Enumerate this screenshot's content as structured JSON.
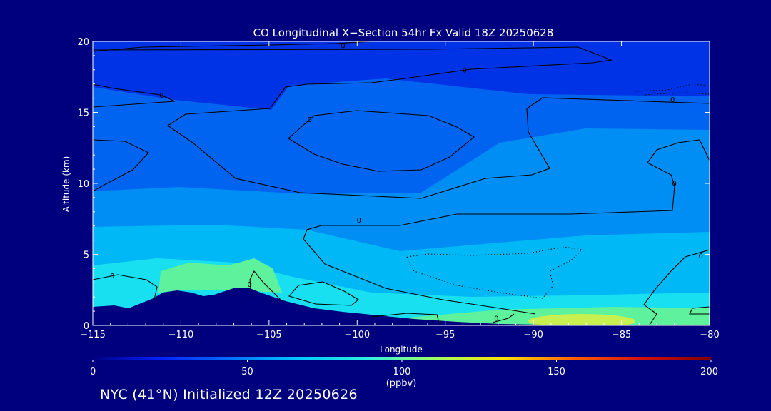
{
  "chart_data": {
    "type": "heatmap",
    "title": "CO Longitudinal X−Section 54hr  Fx Valid 18Z 20250628",
    "xlabel": "Longitude",
    "ylabel": "Altitude (km)",
    "xlim": [
      -115,
      -80
    ],
    "ylim": [
      0,
      20
    ],
    "x_ticks": [
      -115,
      -110,
      -105,
      -100,
      -95,
      -90,
      -85,
      -80
    ],
    "x_tick_labels": [
      "−115",
      "−110",
      "−105",
      "−100",
      "−95",
      "−90",
      "−85",
      "−80"
    ],
    "y_ticks": [
      0,
      5,
      10,
      15,
      20
    ],
    "y_tick_labels": [
      "0",
      "5",
      "10",
      "15",
      "20"
    ],
    "contour_labels": [
      {
        "text": "0",
        "x": -100.8,
        "y": 19.7
      },
      {
        "text": "0",
        "x": -93.9,
        "y": 18.0
      },
      {
        "text": "0",
        "x": -111.1,
        "y": 16.2
      },
      {
        "text": "0",
        "x": -102.7,
        "y": 14.5
      },
      {
        "text": "0",
        "x": -82.1,
        "y": 15.9
      },
      {
        "text": "0",
        "x": -82.0,
        "y": 10.0
      },
      {
        "text": "0",
        "x": -99.9,
        "y": 7.4
      },
      {
        "text": "0",
        "x": -80.5,
        "y": 4.9
      },
      {
        "text": "0",
        "x": -113.9,
        "y": 3.5
      },
      {
        "text": "0",
        "x": -106.1,
        "y": 2.9
      },
      {
        "text": "0",
        "x": -92.1,
        "y": 0.5
      }
    ],
    "colorbar": {
      "min": 0,
      "max": 200,
      "ticks": [
        0,
        50,
        100,
        150,
        200
      ],
      "tick_labels": [
        "0",
        "50",
        "100",
        "150",
        "200"
      ],
      "unit": "(ppbv)",
      "colors": [
        "#000080",
        "#0022ff",
        "#0070ff",
        "#00c8ff",
        "#30f0e0",
        "#a0ff60",
        "#ffe000",
        "#ff6000",
        "#d01010",
        "#800000"
      ]
    },
    "fill_colors": {
      "deep": "#0032e6",
      "mid": "#0064f0",
      "light": "#008ef4",
      "cyan": "#00b8f6",
      "aqua": "#18e0f0",
      "green": "#5ef29c",
      "yellow": "#c8f050",
      "terrain": "#00007e"
    }
  },
  "footer": {
    "text": "NYC (41°N) Initialized 12Z 20250626"
  }
}
